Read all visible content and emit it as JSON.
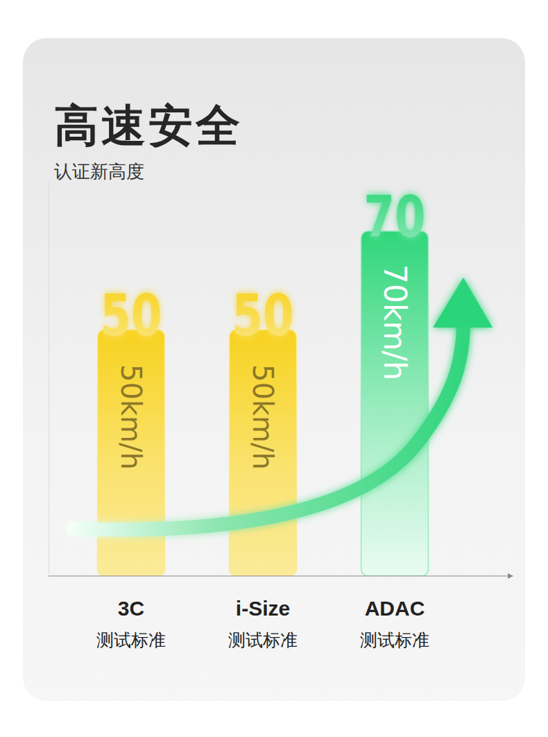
{
  "chart_data": {
    "type": "bar",
    "title": "高速安全",
    "subtitle": "认证新高度",
    "categories": [
      "3C\n测试标准",
      "i-Size\n测试标准",
      "ADAC\n测试标准"
    ],
    "values": [
      50,
      50,
      70
    ],
    "value_labels": [
      "50km/h",
      "50km/h",
      "70km/h"
    ],
    "data_labels": true,
    "colors": [
      "#f7d21e",
      "#f7d21e",
      "#2fd67a"
    ],
    "ylim": [
      0,
      80
    ],
    "yticks": [],
    "tick_labels": "x"
  }
}
